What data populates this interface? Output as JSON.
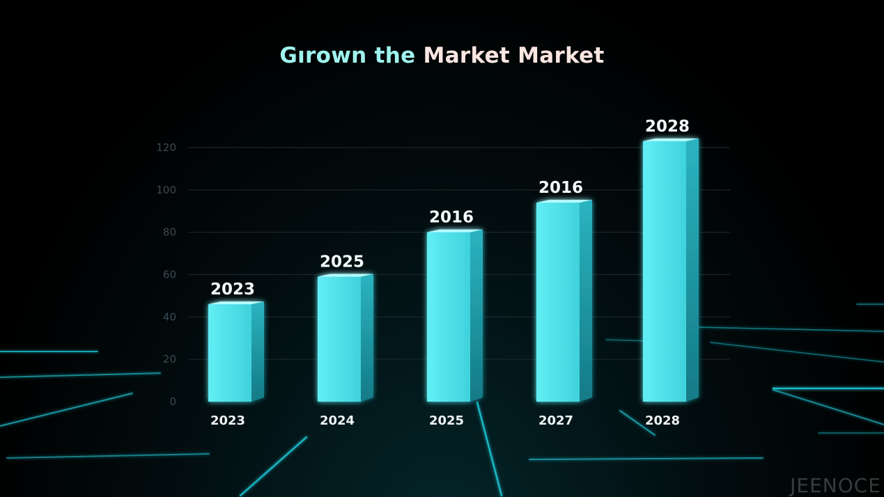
{
  "title_part_a": "Gırown the ",
  "title_part_b": "Market Market",
  "watermark": "JEENOCE",
  "colors": {
    "bar_front": "#58e8f0",
    "bar_side": "#1f9aa6",
    "bar_top": "#b6fbff",
    "baseline": "#39e6f2",
    "grid": "#1c262b",
    "title_a": "#9ff3ee",
    "title_b": "#fbe6e1"
  },
  "chart_data": {
    "type": "bar",
    "title": "Gırown the Market Market",
    "categories": [
      "2023",
      "2024",
      "2025",
      "2027",
      "2028"
    ],
    "values": [
      46,
      59,
      80,
      94,
      123
    ],
    "data_labels": [
      "2023",
      "2025",
      "2016",
      "2016",
      "2028"
    ],
    "yticks": [
      0,
      20,
      40,
      60,
      80,
      100,
      120
    ],
    "ylim": [
      0,
      120
    ],
    "xlabel": "",
    "ylabel": "",
    "grid": true,
    "legend": "none"
  }
}
